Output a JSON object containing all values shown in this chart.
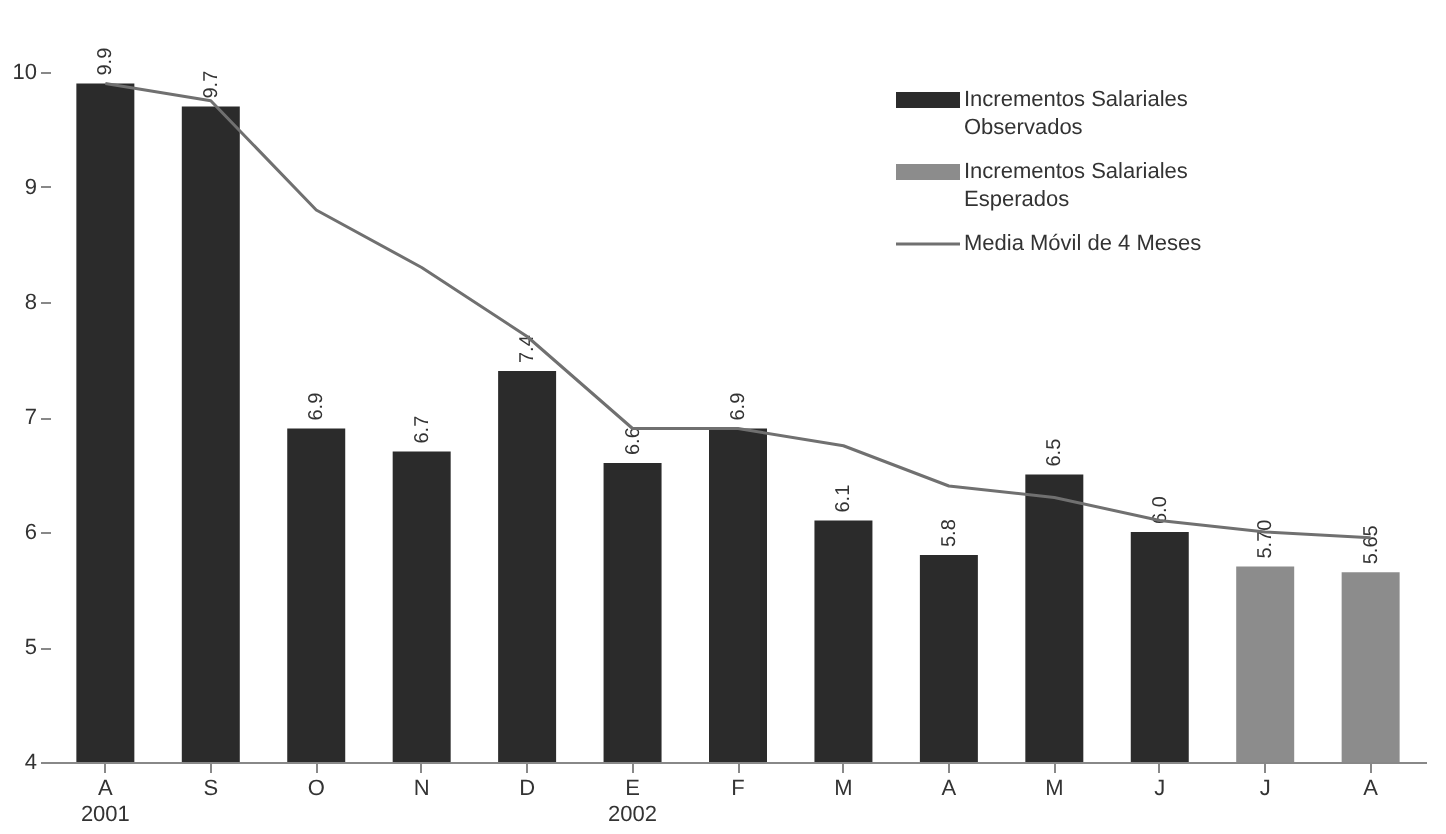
{
  "chart_data": {
    "type": "bar",
    "categories": [
      "A\n2001",
      "S",
      "O",
      "N",
      "D",
      "E\n2002",
      "F",
      "M",
      "A",
      "M",
      "J",
      "J",
      "A"
    ],
    "series": [
      {
        "name": "Incrementos Salariales Observados",
        "color": "#2b2b2b",
        "values": [
          9.9,
          9.7,
          6.9,
          6.7,
          7.4,
          6.6,
          6.9,
          6.1,
          5.8,
          6.5,
          6.0,
          null,
          null
        ],
        "value_labels": [
          "9.9",
          "9.7",
          "6.9",
          "6.7",
          "7.4",
          "6.6",
          "6.9",
          "6.1",
          "5.8",
          "6.5",
          "6.0",
          null,
          null
        ]
      },
      {
        "name": "Incrementos Salariales Esperados",
        "color": "#8c8c8c",
        "values": [
          null,
          null,
          null,
          null,
          null,
          null,
          null,
          null,
          null,
          null,
          null,
          5.7,
          5.65
        ],
        "value_labels": [
          null,
          null,
          null,
          null,
          null,
          null,
          null,
          null,
          null,
          null,
          null,
          "5.70",
          "5.65"
        ]
      },
      {
        "name": "Media Móvil de 4 Meses",
        "type": "line",
        "color": "#707070",
        "values": [
          9.9,
          9.75,
          8.8,
          8.3,
          7.7,
          6.9,
          6.9,
          6.75,
          6.4,
          6.3,
          6.1,
          6.0,
          5.95
        ]
      }
    ],
    "ylim": [
      4,
      10
    ],
    "yticks": [
      4,
      5,
      6,
      7,
      8,
      9,
      10
    ],
    "grid": false,
    "legend": "top right",
    "marker": "none",
    "line_style": "solid"
  }
}
